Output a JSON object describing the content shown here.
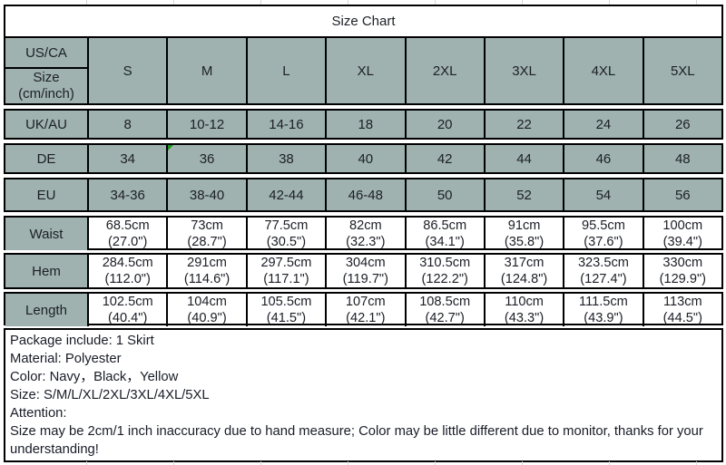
{
  "title": "Size Chart",
  "accent_color": "#9fb2af",
  "header": {
    "region_label": "US/CA",
    "unit_line1": "Size",
    "unit_line2": "(cm/inch)",
    "sizes": [
      "S",
      "M",
      "L",
      "XL",
      "2XL",
      "3XL",
      "4XL",
      "5XL"
    ]
  },
  "size_rows": [
    {
      "label": "UK/AU",
      "values": [
        "8",
        "10-12",
        "14-16",
        "18",
        "20",
        "22",
        "24",
        "26"
      ]
    },
    {
      "label": "DE",
      "values": [
        "34",
        "36",
        "38",
        "40",
        "42",
        "44",
        "46",
        "48"
      ]
    },
    {
      "label": "EU",
      "values": [
        "34-36",
        "38-40",
        "42-44",
        "46-48",
        "50",
        "52",
        "54",
        "56"
      ]
    }
  ],
  "measurement_rows": [
    {
      "label": "Waist",
      "cm": [
        "68.5cm",
        "73cm",
        "77.5cm",
        "82cm",
        "86.5cm",
        "91cm",
        "95.5cm",
        "100cm"
      ],
      "inch": [
        "(27.0\")",
        "(28.7\")",
        "(30.5\")",
        "(32.3\")",
        "(34.1\")",
        "(35.8\")",
        "(37.6\")",
        "(39.4\")"
      ]
    },
    {
      "label": "Hem",
      "cm": [
        "284.5cm",
        "291cm",
        "297.5cm",
        "304cm",
        "310.5cm",
        "317cm",
        "323.5cm",
        "330cm"
      ],
      "inch": [
        "(112.0\")",
        "(114.6\")",
        "(117.1\")",
        "(119.7\")",
        "(122.2\")",
        "(124.8\")",
        "(127.4\")",
        "(129.9\")"
      ]
    },
    {
      "label": "Length",
      "cm": [
        "102.5cm",
        "104cm",
        "105.5cm",
        "107cm",
        "108.5cm",
        "110cm",
        "111.5cm",
        "113cm"
      ],
      "inch": [
        "(40.4\")",
        "(40.9\")",
        "(41.5\")",
        "(42.1\")",
        "(42.7\")",
        "(43.3\")",
        "(43.9\")",
        "(44.5\")"
      ]
    }
  ],
  "notes": {
    "lines": [
      "Package include: 1 Skirt",
      "Material: Polyester",
      "Color: Navy，Black，Yellow",
      "Size: S/M/L/XL/2XL/3XL/4XL/5XL",
      "Attention:",
      "Size may be 2cm/1 inch inaccuracy due to hand measure; Color may be little different due to monitor, thanks for your understanding!"
    ]
  }
}
